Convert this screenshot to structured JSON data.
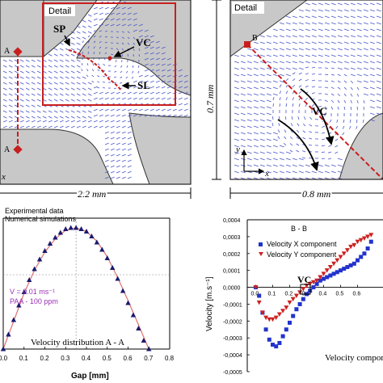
{
  "panel_a": {
    "detail_label": "Detail",
    "sp_label": "SP",
    "vc_label": "VC",
    "sl_label": "SL",
    "section_top_label": "A",
    "section_bottom_label": "A",
    "x_edge_label": "x",
    "dimension_label": "2.2 mm"
  },
  "panel_b": {
    "detail_label": "Detail",
    "b_label": "B",
    "vc_label": "VC",
    "height_label": "0.7 mm",
    "width_label": "0.8 mm",
    "axis_y": "y",
    "axis_x": "x"
  },
  "colors": {
    "vector": "#4a55c8",
    "detail_box": "#c81e1e",
    "wall": "#c8c8c8",
    "section_line": "#c81e1e",
    "exp_marker": "#1a1a6e",
    "sim_line": "#e07070",
    "vx_color": "#2233cc",
    "vy_color": "#cc2222",
    "annotation": "#9b2fb5"
  },
  "chart_data": [
    {
      "type": "scatter",
      "title": "Velocity distribution A - A",
      "xlabel": "Gap [mm]",
      "ylabel": "",
      "xlim": [
        0.0,
        0.8
      ],
      "x_ticks": [
        "0.0",
        "0.1",
        "0.2",
        "0.3",
        "0.4",
        "0.5",
        "0.6",
        "0.7",
        "0.8"
      ],
      "legend": [
        "Experimental data",
        "Numerical simulations"
      ],
      "legend_position": "top-left",
      "annotations": [
        "V = 0.01 ms⁻¹",
        "PAA - 100 ppm"
      ],
      "series": [
        {
          "name": "Experimental data",
          "x": [
            0.0,
            0.025,
            0.05,
            0.075,
            0.1,
            0.125,
            0.15,
            0.175,
            0.2,
            0.225,
            0.25,
            0.275,
            0.3,
            0.325,
            0.35,
            0.375,
            0.4,
            0.425,
            0.45,
            0.475,
            0.5,
            0.525,
            0.55,
            0.575,
            0.6,
            0.625,
            0.65,
            0.675,
            0.7
          ],
          "y": [
            0.0,
            0.12,
            0.24,
            0.36,
            0.47,
            0.57,
            0.66,
            0.74,
            0.81,
            0.87,
            0.92,
            0.96,
            0.99,
            1.0,
            1.0,
            0.99,
            0.97,
            0.93,
            0.88,
            0.82,
            0.75,
            0.67,
            0.58,
            0.48,
            0.38,
            0.28,
            0.17,
            0.07,
            0.0
          ]
        },
        {
          "name": "Numerical simulations",
          "x": [
            0.0,
            0.05,
            0.1,
            0.15,
            0.2,
            0.25,
            0.3,
            0.35,
            0.4,
            0.45,
            0.5,
            0.55,
            0.6,
            0.65,
            0.7
          ],
          "y": [
            0.0,
            0.23,
            0.46,
            0.65,
            0.8,
            0.91,
            0.98,
            1.0,
            0.97,
            0.89,
            0.76,
            0.59,
            0.4,
            0.2,
            0.0
          ]
        }
      ]
    },
    {
      "type": "scatter",
      "title": "B - B",
      "xlabel": "Velocity compon",
      "ylabel": "Velocity [m.s⁻¹]",
      "ylim": [
        -0.0005,
        0.0004
      ],
      "xlim": [
        -0.05,
        0.75
      ],
      "y_ticks": [
        "0,0004",
        "0,0003",
        "0,0002",
        "0,0001",
        "0,0000",
        "-0,0001",
        "-0,0002",
        "-0,0003",
        "-0,0004",
        "-0,0005"
      ],
      "x_ticks": [
        "0.0",
        "0.1",
        "0.2",
        "0.3",
        "0.4",
        "0.5",
        "0.6"
      ],
      "legend_position": "top-right",
      "annotations": [
        "VC"
      ],
      "series": [
        {
          "name": "Velocity X component",
          "x": [
            0.0,
            0.02,
            0.04,
            0.06,
            0.08,
            0.1,
            0.12,
            0.14,
            0.16,
            0.18,
            0.2,
            0.22,
            0.24,
            0.26,
            0.28,
            0.3,
            0.32,
            0.34,
            0.36,
            0.38,
            0.4,
            0.42,
            0.44,
            0.46,
            0.48,
            0.5,
            0.52,
            0.54,
            0.56,
            0.58,
            0.6,
            0.62,
            0.64,
            0.66,
            0.68
          ],
          "y": [
            0.0,
            -5e-05,
            -0.00015,
            -0.00025,
            -0.00031,
            -0.00034,
            -0.00035,
            -0.00033,
            -0.00029,
            -0.00025,
            -0.00021,
            -0.00017,
            -0.00013,
            -0.0001,
            -7e-05,
            -4e-05,
            -2e-05,
            0.0,
            2e-05,
            4e-05,
            5e-05,
            6e-05,
            7e-05,
            8e-05,
            9e-05,
            0.0001,
            0.00011,
            0.00012,
            0.00013,
            0.00014,
            0.00016,
            0.00018,
            0.0002,
            0.00023,
            0.00027
          ]
        },
        {
          "name": "Velocity Y component",
          "x": [
            0.0,
            0.02,
            0.04,
            0.06,
            0.08,
            0.1,
            0.12,
            0.14,
            0.16,
            0.18,
            0.2,
            0.22,
            0.24,
            0.26,
            0.28,
            0.3,
            0.32,
            0.34,
            0.36,
            0.38,
            0.4,
            0.42,
            0.44,
            0.46,
            0.48,
            0.5,
            0.52,
            0.54,
            0.56,
            0.58,
            0.6,
            0.62,
            0.64,
            0.66,
            0.68
          ],
          "y": [
            0.0,
            -9e-05,
            -0.00015,
            -0.00018,
            -0.00019,
            -0.00019,
            -0.00018,
            -0.00016,
            -0.00014,
            -0.00012,
            -9e-05,
            -7e-05,
            -5e-05,
            -3e-05,
            -1e-05,
            1e-05,
            2e-05,
            3e-05,
            4e-05,
            6e-05,
            8e-05,
            0.0001,
            0.00012,
            0.00014,
            0.00016,
            0.00018,
            0.0002,
            0.00022,
            0.00024,
            0.00025,
            0.00027,
            0.00028,
            0.00029,
            0.0003,
            0.00031
          ]
        }
      ]
    }
  ]
}
